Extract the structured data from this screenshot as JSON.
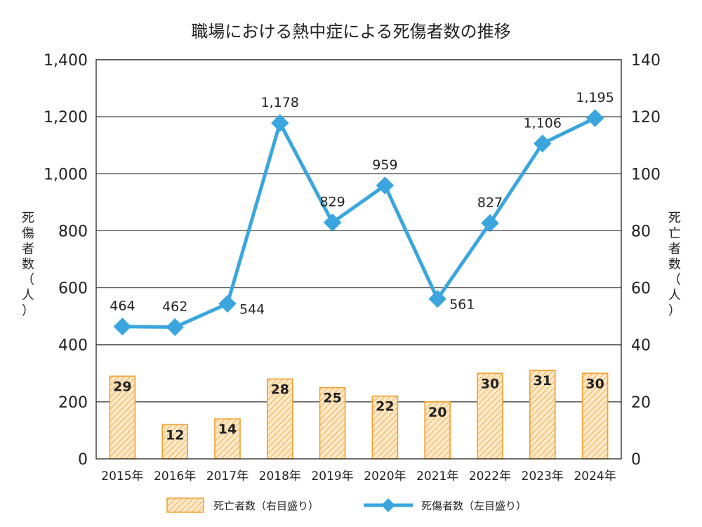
{
  "chart_data": {
    "type": "bar+line",
    "title": "職場における熱中症による死傷者数の推移",
    "categories": [
      "2015年",
      "2016年",
      "2017年",
      "2018年",
      "2019年",
      "2020年",
      "2021年",
      "2022年",
      "2023年",
      "2024年"
    ],
    "y_left": {
      "label": "死傷者数（人）",
      "range": [
        0,
        1400
      ],
      "ticks": [
        "0",
        "200",
        "400",
        "600",
        "800",
        "1,000",
        "1,200",
        "1,400"
      ]
    },
    "y_right": {
      "label": "死亡者数（人）",
      "range": [
        0,
        140
      ],
      "ticks": [
        "0",
        "20",
        "40",
        "60",
        "80",
        "100",
        "120",
        "140"
      ]
    },
    "series": [
      {
        "name": "死亡者数（右目盛り）",
        "kind": "bar",
        "axis": "right",
        "values": [
          29,
          12,
          14,
          28,
          25,
          22,
          20,
          30,
          31,
          30
        ],
        "labels": [
          "29",
          "12",
          "14",
          "28",
          "25",
          "22",
          "20",
          "30",
          "31",
          "30"
        ]
      },
      {
        "name": "死傷者数（左目盛り）",
        "kind": "line",
        "axis": "left",
        "values": [
          464,
          462,
          544,
          1178,
          829,
          959,
          561,
          827,
          1106,
          1195
        ],
        "labels": [
          "464",
          "462",
          "544",
          "1,178",
          "829",
          "959",
          "561",
          "827",
          "1,106",
          "1,195"
        ]
      }
    ],
    "grid": true,
    "legend": "bottom",
    "colors": {
      "bar_fill": "#fde3bd",
      "bar_stroke": "#f0a030",
      "line": "#3aa6dd",
      "grid": "#333333"
    }
  }
}
